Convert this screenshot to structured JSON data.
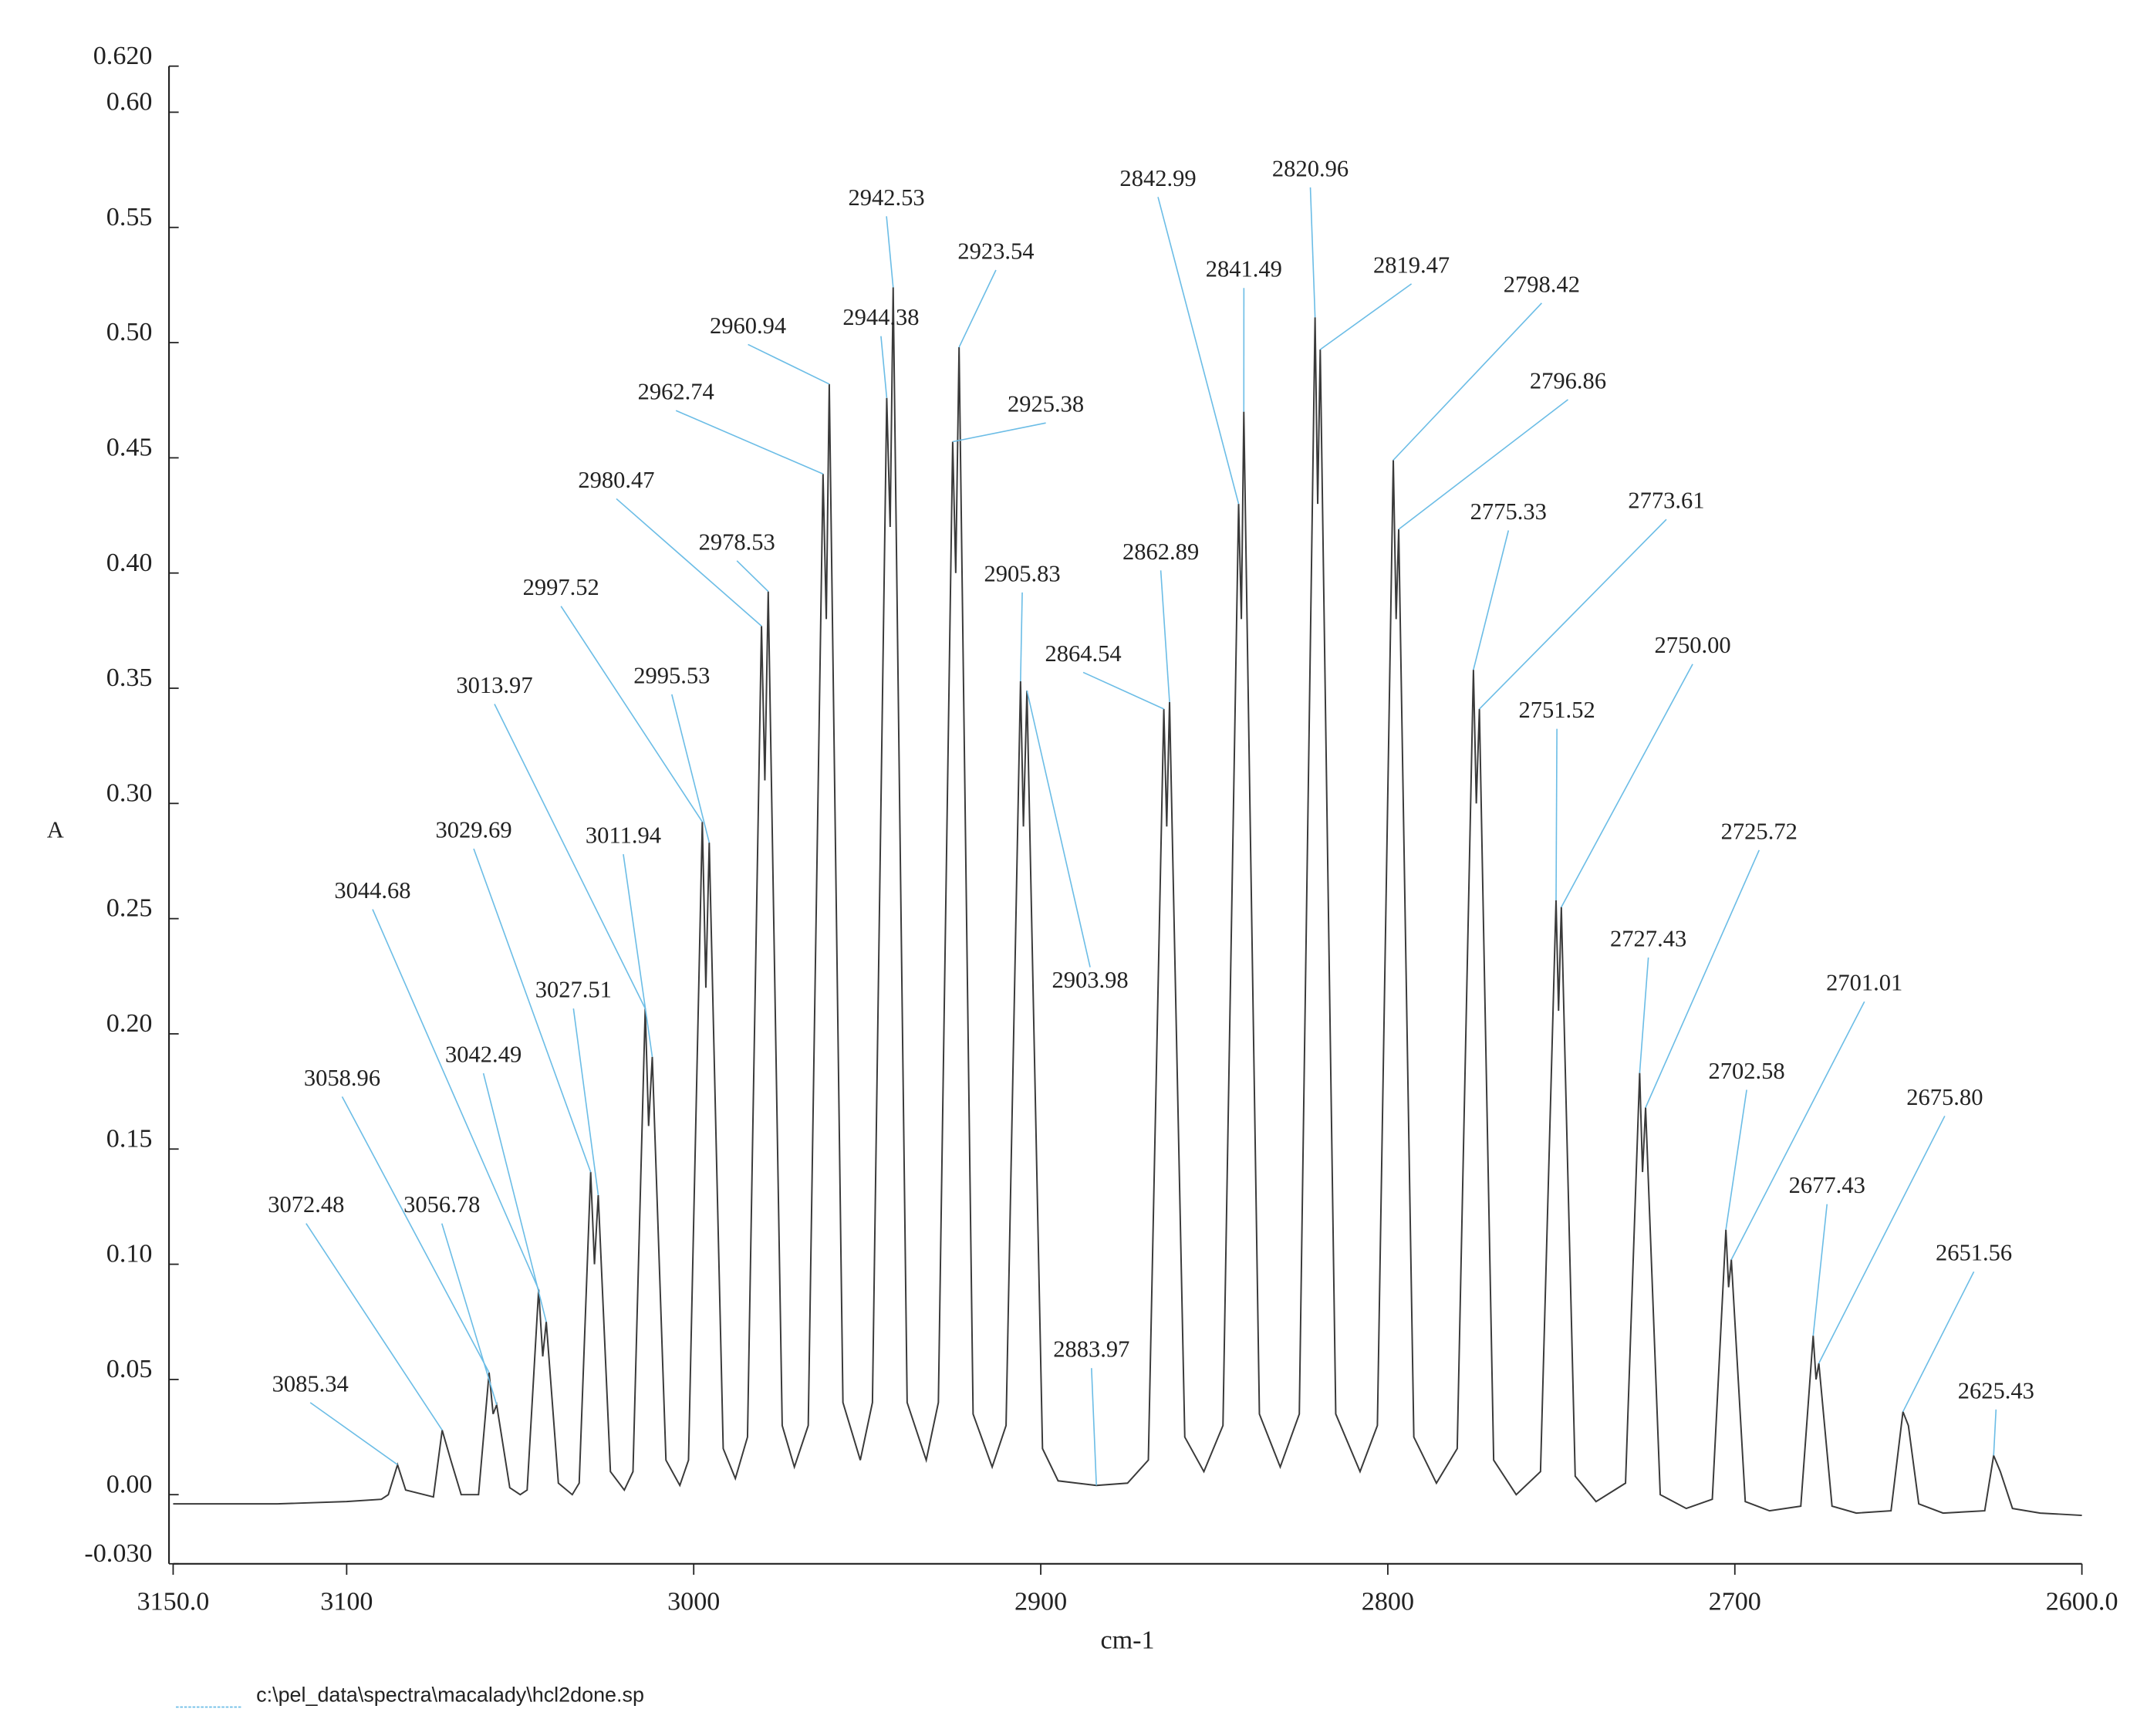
{
  "chart_data": {
    "type": "line",
    "ylabel": "A",
    "xlabel": "cm-1",
    "xlim": [
      3150,
      2600
    ],
    "ylim": [
      -0.03,
      0.62
    ],
    "xticks": [
      {
        "value": 3150,
        "label": "3150.0"
      },
      3100,
      3000,
      2900,
      2800,
      2700,
      {
        "value": 2600,
        "label": "2600.0"
      }
    ],
    "yticks": [
      {
        "value": -0.03,
        "label": "-0.030"
      },
      {
        "value": 0,
        "label": "0.00"
      },
      {
        "value": 0.05,
        "label": "0.05"
      },
      {
        "value": 0.1,
        "label": "0.10"
      },
      {
        "value": 0.15,
        "label": "0.15"
      },
      {
        "value": 0.2,
        "label": "0.20"
      },
      {
        "value": 0.25,
        "label": "0.25"
      },
      {
        "value": 0.3,
        "label": "0.30"
      },
      {
        "value": 0.35,
        "label": "0.35"
      },
      {
        "value": 0.4,
        "label": "0.40"
      },
      {
        "value": 0.45,
        "label": "0.45"
      },
      {
        "value": 0.5,
        "label": "0.50"
      },
      {
        "value": 0.55,
        "label": "0.55"
      },
      {
        "value": 0.6,
        "label": "0.60"
      },
      {
        "value": 0.62,
        "label": "0.620"
      }
    ],
    "annotation_color": "#6cbde6",
    "legend_line_color": "#6cbde6",
    "series": [
      {
        "name": "c:\\pel_data\\spectra\\macalady\\hcl2done.sp",
        "color": "#3a3a3a",
        "x": [
          3150,
          3120,
          3100,
          3090,
          3088,
          3085.34,
          3083,
          3075,
          3072.48,
          3070,
          3067,
          3062,
          3058.96,
          3057.8,
          3056.78,
          3053,
          3050,
          3048,
          3044.68,
          3043.5,
          3042.49,
          3039,
          3035,
          3033,
          3029.69,
          3028.6,
          3027.51,
          3024,
          3020,
          3017.5,
          3013.97,
          3013,
          3011.94,
          3008,
          3004,
          3001.5,
          2997.52,
          2996.5,
          2995.53,
          2991.5,
          2988,
          2984.5,
          2980.47,
          2979.5,
          2978.53,
          2974.5,
          2971,
          2967,
          2962.74,
          2961.8,
          2960.94,
          2957,
          2952,
          2948.5,
          2944.38,
          2943.4,
          2942.53,
          2938.5,
          2933,
          2929.5,
          2925.38,
          2924.5,
          2923.54,
          2919.5,
          2914,
          2910,
          2905.83,
          2905,
          2903.98,
          2899.5,
          2895,
          2883.97,
          2875,
          2869,
          2864.54,
          2863.7,
          2862.89,
          2858.5,
          2853,
          2847.5,
          2842.99,
          2842.2,
          2841.49,
          2837,
          2831,
          2825.5,
          2820.96,
          2820.2,
          2819.47,
          2815,
          2808,
          2803,
          2798.42,
          2797.6,
          2796.86,
          2792.5,
          2786,
          2780,
          2775.33,
          2774.5,
          2773.61,
          2769.5,
          2763,
          2756,
          2751.52,
          2750.8,
          2750.0,
          2746,
          2740,
          2731.5,
          2727.43,
          2726.6,
          2725.72,
          2721.5,
          2714,
          2706.5,
          2702.58,
          2701.8,
          2701.01,
          2697,
          2690,
          2681,
          2677.43,
          2676.6,
          2675.8,
          2672,
          2665,
          2655,
          2651.56,
          2650,
          2647,
          2640,
          2628,
          2625.43,
          2623.5,
          2620,
          2612,
          2600
        ],
        "values": [
          -0.004,
          -0.004,
          -0.003,
          -0.002,
          0.0,
          0.013,
          0.002,
          -0.001,
          0.028,
          0.015,
          0.0,
          0.0,
          0.053,
          0.035,
          0.039,
          0.003,
          0.0,
          0.002,
          0.089,
          0.06,
          0.075,
          0.005,
          0.0,
          0.005,
          0.14,
          0.1,
          0.13,
          0.01,
          0.002,
          0.01,
          0.211,
          0.16,
          0.19,
          0.015,
          0.004,
          0.015,
          0.292,
          0.22,
          0.283,
          0.02,
          0.007,
          0.025,
          0.377,
          0.31,
          0.392,
          0.03,
          0.012,
          0.03,
          0.443,
          0.38,
          0.482,
          0.04,
          0.015,
          0.04,
          0.476,
          0.42,
          0.524,
          0.04,
          0.015,
          0.04,
          0.457,
          0.4,
          0.498,
          0.035,
          0.012,
          0.03,
          0.353,
          0.29,
          0.349,
          0.02,
          0.006,
          0.004,
          0.005,
          0.015,
          0.341,
          0.29,
          0.344,
          0.025,
          0.01,
          0.03,
          0.43,
          0.38,
          0.47,
          0.035,
          0.012,
          0.035,
          0.511,
          0.43,
          0.497,
          0.035,
          0.01,
          0.03,
          0.449,
          0.38,
          0.419,
          0.025,
          0.005,
          0.02,
          0.358,
          0.3,
          0.341,
          0.015,
          0.0,
          0.01,
          0.258,
          0.21,
          0.255,
          0.008,
          -0.003,
          0.005,
          0.183,
          0.14,
          0.168,
          0.0,
          -0.006,
          -0.002,
          0.115,
          0.09,
          0.102,
          -0.003,
          -0.007,
          -0.005,
          0.069,
          0.05,
          0.057,
          -0.005,
          -0.008,
          -0.007,
          0.036,
          0.03,
          -0.004,
          -0.008,
          -0.007,
          0.017,
          0.01,
          -0.006,
          -0.008,
          -0.009
        ]
      }
    ],
    "annotations": [
      {
        "x": 3085.34,
        "y": 0.013,
        "label": "3085.34"
      },
      {
        "x": 3072.48,
        "y": 0.028,
        "label": "3072.48"
      },
      {
        "x": 3058.96,
        "y": 0.053,
        "label": "3058.96"
      },
      {
        "x": 3056.78,
        "y": 0.039,
        "label": "3056.78"
      },
      {
        "x": 3044.68,
        "y": 0.089,
        "label": "3044.68"
      },
      {
        "x": 3042.49,
        "y": 0.075,
        "label": "3042.49"
      },
      {
        "x": 3029.69,
        "y": 0.14,
        "label": "3029.69"
      },
      {
        "x": 3027.51,
        "y": 0.13,
        "label": "3027.51"
      },
      {
        "x": 3013.97,
        "y": 0.211,
        "label": "3013.97"
      },
      {
        "x": 3011.94,
        "y": 0.19,
        "label": "3011.94"
      },
      {
        "x": 2997.52,
        "y": 0.292,
        "label": "2997.52"
      },
      {
        "x": 2995.53,
        "y": 0.283,
        "label": "2995.53"
      },
      {
        "x": 2980.47,
        "y": 0.377,
        "label": "2980.47"
      },
      {
        "x": 2978.53,
        "y": 0.392,
        "label": "2978.53"
      },
      {
        "x": 2962.74,
        "y": 0.443,
        "label": "2962.74"
      },
      {
        "x": 2960.94,
        "y": 0.482,
        "label": "2960.94"
      },
      {
        "x": 2944.38,
        "y": 0.476,
        "label": "2944.38"
      },
      {
        "x": 2942.53,
        "y": 0.524,
        "label": "2942.53"
      },
      {
        "x": 2925.38,
        "y": 0.457,
        "label": "2925.38"
      },
      {
        "x": 2923.54,
        "y": 0.498,
        "label": "2923.54"
      },
      {
        "x": 2905.83,
        "y": 0.353,
        "label": "2905.83"
      },
      {
        "x": 2903.98,
        "y": 0.349,
        "label": "2903.98"
      },
      {
        "x": 2883.97,
        "y": 0.004,
        "label": "2883.97"
      },
      {
        "x": 2864.54,
        "y": 0.341,
        "label": "2864.54"
      },
      {
        "x": 2862.89,
        "y": 0.344,
        "label": "2862.89"
      },
      {
        "x": 2842.99,
        "y": 0.43,
        "label": "2842.99"
      },
      {
        "x": 2841.49,
        "y": 0.47,
        "label": "2841.49"
      },
      {
        "x": 2820.96,
        "y": 0.511,
        "label": "2820.96"
      },
      {
        "x": 2819.47,
        "y": 0.497,
        "label": "2819.47"
      },
      {
        "x": 2798.42,
        "y": 0.449,
        "label": "2798.42"
      },
      {
        "x": 2796.86,
        "y": 0.419,
        "label": "2796.86"
      },
      {
        "x": 2775.33,
        "y": 0.358,
        "label": "2775.33"
      },
      {
        "x": 2773.61,
        "y": 0.341,
        "label": "2773.61"
      },
      {
        "x": 2751.52,
        "y": 0.258,
        "label": "2751.52"
      },
      {
        "x": 2750.0,
        "y": 0.255,
        "label": "2750.00"
      },
      {
        "x": 2727.43,
        "y": 0.183,
        "label": "2727.43"
      },
      {
        "x": 2725.72,
        "y": 0.168,
        "label": "2725.72"
      },
      {
        "x": 2702.58,
        "y": 0.115,
        "label": "2702.58"
      },
      {
        "x": 2701.01,
        "y": 0.102,
        "label": "2701.01"
      },
      {
        "x": 2677.43,
        "y": 0.069,
        "label": "2677.43"
      },
      {
        "x": 2675.8,
        "y": 0.057,
        "label": "2675.80"
      },
      {
        "x": 2651.56,
        "y": 0.036,
        "label": "2651.56"
      },
      {
        "x": 2625.43,
        "y": 0.017,
        "label": "2625.43"
      }
    ]
  }
}
